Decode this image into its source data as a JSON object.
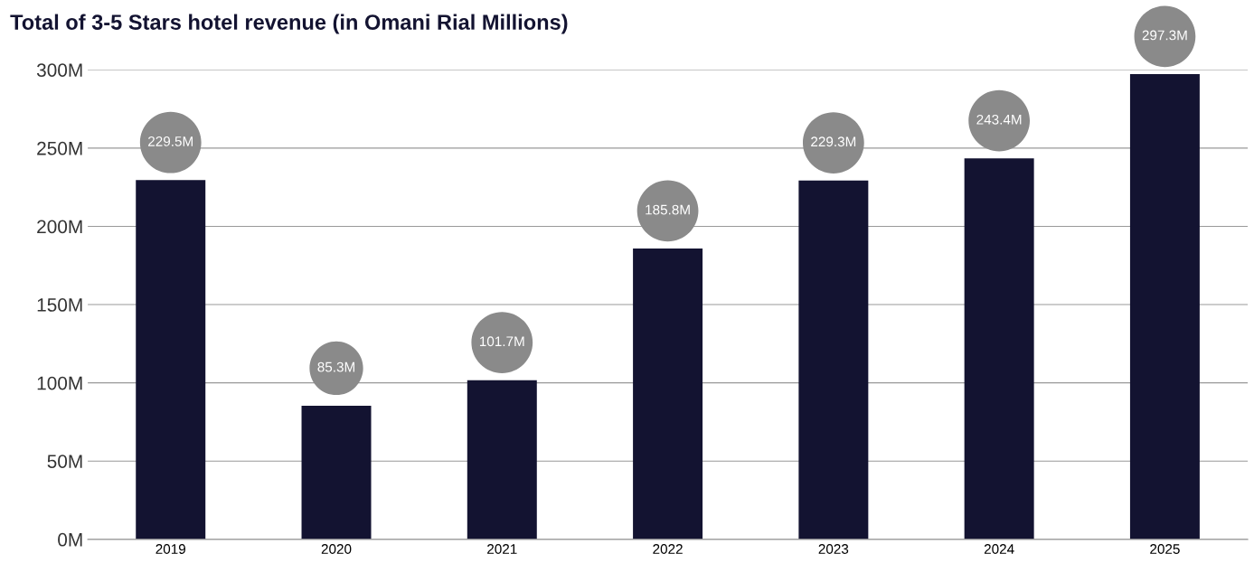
{
  "chart_data": {
    "type": "bar",
    "title": "Total of 3-5 Stars hotel revenue (in Omani Rial Millions)",
    "categories": [
      "2019",
      "2020",
      "2021",
      "2022",
      "2023",
      "2024",
      "2025"
    ],
    "values": [
      229.5,
      85.3,
      101.7,
      185.8,
      229.3,
      243.4,
      297.3
    ],
    "value_labels": [
      "229.5M",
      "85.3M",
      "101.7M",
      "185.8M",
      "229.3M",
      "243.4M",
      "297.3M"
    ],
    "color": "#131331",
    "ylim": [
      0,
      300
    ],
    "yticks": [
      {
        "value": 0,
        "label": "0M"
      },
      {
        "value": 50,
        "label": "50M"
      },
      {
        "value": 100,
        "label": "100M"
      },
      {
        "value": 150,
        "label": "150M"
      },
      {
        "value": 200,
        "label": "200M"
      },
      {
        "value": 250,
        "label": "250M"
      },
      {
        "value": 300,
        "label": "300M"
      }
    ],
    "grid": "y",
    "legend": false
  }
}
